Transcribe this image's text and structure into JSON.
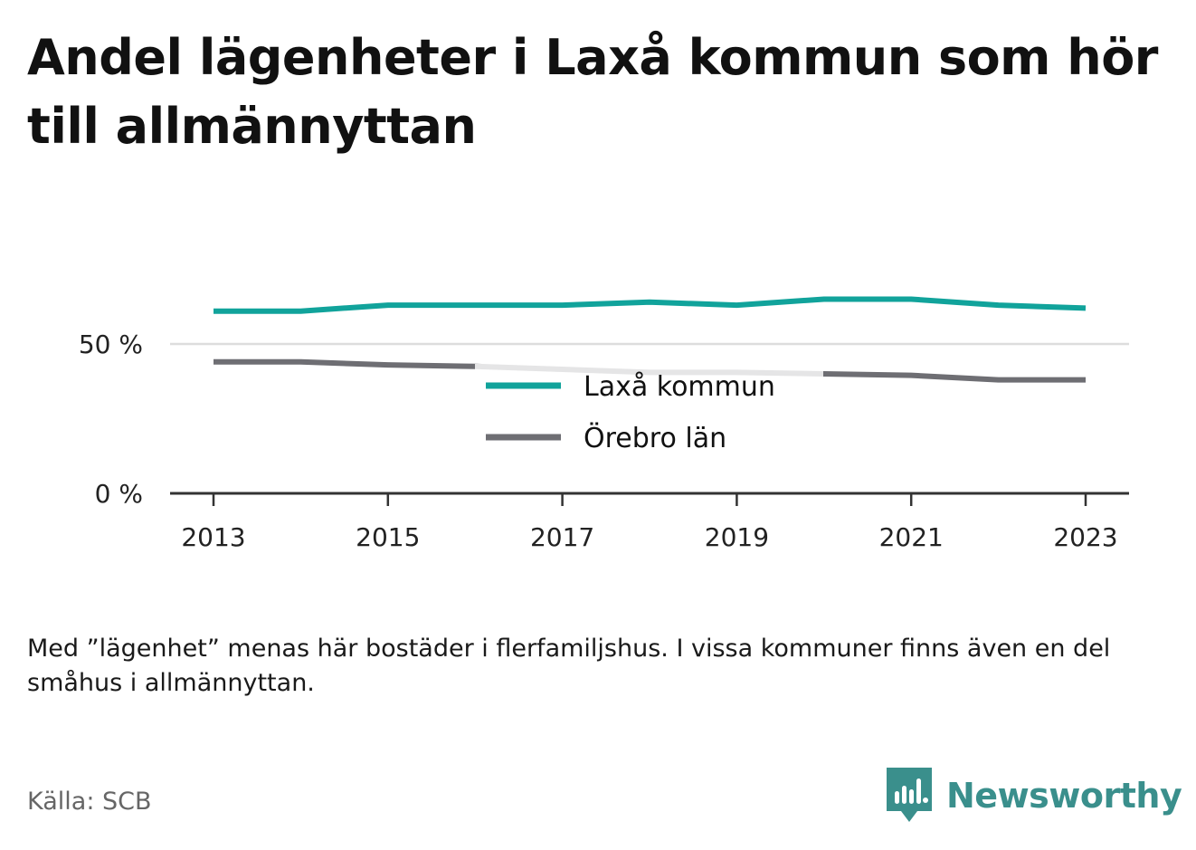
{
  "title": "Andel lägenheter i Laxå kommun som hör till allmännyttan",
  "note": "Med ”lägenhet” menas här bostäder i flerfamiljshus. I vissa kommuner finns även en del småhus i allmännyttan.",
  "source": "Källa: SCB",
  "brand": {
    "name": "Newsworthy",
    "icon": "bar-chart-speech-bubble-icon",
    "color": "#3a8f8c"
  },
  "chart_data": {
    "type": "line",
    "x": [
      2013,
      2014,
      2015,
      2016,
      2017,
      2018,
      2019,
      2020,
      2021,
      2022,
      2023
    ],
    "x_tick_labels": [
      "2013",
      "2015",
      "2017",
      "2019",
      "2021",
      "2023"
    ],
    "y_tick_labels": [
      "0 %",
      "50 %"
    ],
    "ylim": [
      0,
      100
    ],
    "grid": true,
    "legend_position": "center",
    "series": [
      {
        "name": "Laxå kommun",
        "color": "#11a39b",
        "values": [
          61,
          61,
          63,
          63,
          63,
          64,
          63,
          65,
          65,
          63,
          62
        ]
      },
      {
        "name": "Örebro län",
        "color": "#6e6e73",
        "values": [
          44,
          44,
          43,
          42.5,
          41.5,
          40.5,
          40.5,
          40,
          39.5,
          38,
          38
        ]
      }
    ]
  }
}
